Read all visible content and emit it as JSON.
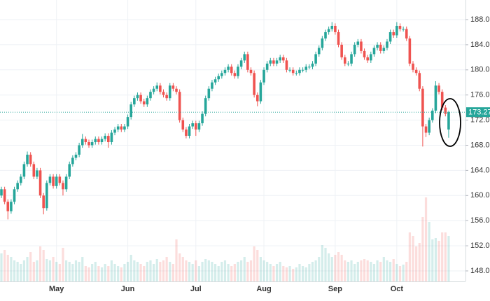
{
  "chart_data": {
    "type": "candlestick",
    "up_color": "#26a69a",
    "down_color": "#ef5350",
    "grid": true,
    "ylim": [
      146.33,
      191.12
    ],
    "yticks": [
      {
        "value": 148,
        "label": "148.00"
      },
      {
        "value": 152,
        "label": "152.00"
      },
      {
        "value": 156,
        "label": "156.00"
      },
      {
        "value": 160,
        "label": "160.00"
      },
      {
        "value": 164,
        "label": "164.00"
      },
      {
        "value": 168,
        "label": "168.00"
      },
      {
        "value": 172,
        "label": "172.00"
      },
      {
        "value": 176,
        "label": "176.00"
      },
      {
        "value": 180,
        "label": "180.00"
      },
      {
        "value": 184,
        "label": "184.00"
      },
      {
        "value": 188,
        "label": "188.00"
      }
    ],
    "categories": [
      null,
      null,
      null,
      null,
      null,
      null,
      null,
      null,
      null,
      null,
      null,
      null,
      null,
      null,
      null,
      null,
      null,
      "May",
      null,
      null,
      null,
      null,
      null,
      null,
      null,
      null,
      null,
      null,
      null,
      null,
      null,
      null,
      null,
      null,
      null,
      null,
      null,
      null,
      null,
      "Jun",
      null,
      null,
      null,
      null,
      null,
      null,
      null,
      null,
      null,
      null,
      null,
      null,
      null,
      null,
      null,
      null,
      null,
      null,
      null,
      null,
      "Jul",
      null,
      null,
      null,
      null,
      null,
      null,
      null,
      null,
      null,
      null,
      null,
      null,
      null,
      null,
      null,
      null,
      null,
      null,
      null,
      null,
      "Aug",
      null,
      null,
      null,
      null,
      null,
      null,
      null,
      null,
      null,
      null,
      null,
      null,
      null,
      null,
      null,
      null,
      null,
      null,
      null,
      null,
      null,
      "Sep",
      null,
      null,
      null,
      null,
      null,
      null,
      null,
      null,
      null,
      null,
      null,
      null,
      null,
      null,
      null,
      null,
      null,
      null,
      "Oct",
      null,
      null,
      null,
      null,
      null,
      null,
      null,
      null,
      null,
      null,
      null,
      null,
      null,
      null,
      null,
      null
    ],
    "ohlc": [
      [
        160,
        161.4,
        159.6,
        161
      ],
      [
        161,
        161.4,
        158.6,
        159
      ],
      [
        159,
        159.4,
        156.2,
        157.5
      ],
      [
        157.5,
        159.4,
        157.1,
        159
      ],
      [
        159,
        161.4,
        158.6,
        161
      ],
      [
        161,
        162.4,
        160.6,
        162
      ],
      [
        162,
        163.4,
        161.6,
        163
      ],
      [
        163,
        165.4,
        162.6,
        165
      ],
      [
        165,
        167,
        164.6,
        166.5
      ],
      [
        166.5,
        166.9,
        164.6,
        165
      ],
      [
        165,
        165.4,
        162.6,
        163
      ],
      [
        163,
        164.4,
        162.6,
        164
      ],
      [
        164,
        164.4,
        159.6,
        160
      ],
      [
        160,
        160.4,
        157,
        158
      ],
      [
        158,
        162.4,
        157.6,
        162
      ],
      [
        162,
        163.4,
        161.6,
        163
      ],
      [
        163,
        163.4,
        161.1,
        161.5
      ],
      [
        161.5,
        163.4,
        161.1,
        163
      ],
      [
        163,
        163.4,
        161.6,
        162
      ],
      [
        162,
        162.4,
        160,
        161
      ],
      [
        161,
        163.4,
        160.6,
        163
      ],
      [
        163,
        165.4,
        162.6,
        165
      ],
      [
        165,
        166.4,
        164.6,
        166
      ],
      [
        166,
        166.9,
        165.6,
        166.5
      ],
      [
        166.5,
        168.4,
        166.1,
        168
      ],
      [
        168,
        169.8,
        167.6,
        169
      ],
      [
        169,
        169.4,
        168.1,
        168.5
      ],
      [
        168.5,
        168.9,
        167.6,
        168
      ],
      [
        168,
        168.9,
        167.6,
        168.5
      ],
      [
        168.5,
        169.4,
        168.1,
        169
      ],
      [
        169,
        169.4,
        168.1,
        168.5
      ],
      [
        168.5,
        169.4,
        168.1,
        169
      ],
      [
        169,
        169.9,
        168.6,
        169.5
      ],
      [
        169.5,
        169.9,
        167.6,
        168.5
      ],
      [
        168.5,
        170.4,
        168.1,
        170
      ],
      [
        170,
        170.9,
        169.6,
        170.5
      ],
      [
        170.5,
        171.4,
        170.1,
        171
      ],
      [
        171,
        171.4,
        170.1,
        170.5
      ],
      [
        170.5,
        171.4,
        170.1,
        171
      ],
      [
        171,
        172.9,
        170.6,
        172.5
      ],
      [
        172.5,
        174.9,
        172.1,
        174.5
      ],
      [
        174.5,
        175.9,
        174.1,
        175.5
      ],
      [
        175.5,
        176.4,
        175.1,
        176
      ],
      [
        176,
        176.4,
        174.6,
        175
      ],
      [
        175,
        175.4,
        174.1,
        174.5
      ],
      [
        174.5,
        175.9,
        174.1,
        175.5
      ],
      [
        175.5,
        176.9,
        175.1,
        176.5
      ],
      [
        176.5,
        177.4,
        176.1,
        177
      ],
      [
        177,
        178,
        176.6,
        177.5
      ],
      [
        177.5,
        177.9,
        176.1,
        176.5
      ],
      [
        176.5,
        176.9,
        175.6,
        176
      ],
      [
        176,
        176.4,
        175.1,
        175.5
      ],
      [
        175.5,
        177.9,
        175.1,
        177.5
      ],
      [
        177.5,
        177.9,
        176.6,
        177
      ],
      [
        177,
        177.4,
        176.1,
        176.5
      ],
      [
        176.5,
        176.9,
        171.6,
        172
      ],
      [
        172,
        172.4,
        170.1,
        170.5
      ],
      [
        170.5,
        170.9,
        169.1,
        169.5
      ],
      [
        169.5,
        171.4,
        169.1,
        171
      ],
      [
        171,
        171.9,
        170.6,
        171.5
      ],
      [
        171.5,
        171.9,
        169.5,
        170.5
      ],
      [
        170.5,
        171.9,
        170.1,
        171.5
      ],
      [
        171.5,
        173.4,
        171.1,
        173
      ],
      [
        173,
        175.9,
        172.6,
        175.5
      ],
      [
        175.5,
        177.4,
        175.1,
        177
      ],
      [
        177,
        178.4,
        176.6,
        178
      ],
      [
        178,
        178.9,
        177.6,
        178.5
      ],
      [
        178.5,
        179.4,
        178.1,
        179
      ],
      [
        179,
        179.9,
        178.6,
        179.5
      ],
      [
        179.5,
        180.4,
        179.1,
        180
      ],
      [
        180,
        180.9,
        179.6,
        180.5
      ],
      [
        180.5,
        180.9,
        179.1,
        179.5
      ],
      [
        179.5,
        179.9,
        178.6,
        179
      ],
      [
        179,
        180.9,
        178.6,
        180.5
      ],
      [
        180.5,
        181.9,
        180.1,
        181.5
      ],
      [
        181.5,
        182.9,
        181.1,
        182.5
      ],
      [
        182.5,
        182.9,
        179.6,
        180
      ],
      [
        180,
        180.4,
        179.1,
        179.5
      ],
      [
        179.5,
        179.9,
        175.6,
        176
      ],
      [
        176,
        176.4,
        174.2,
        175
      ],
      [
        175,
        178.4,
        174.6,
        178
      ],
      [
        178,
        180.4,
        177.6,
        180
      ],
      [
        180,
        181.4,
        179.6,
        181
      ],
      [
        181,
        181.9,
        180.6,
        181.5
      ],
      [
        181.5,
        181.9,
        180.6,
        181
      ],
      [
        181,
        181.9,
        180.6,
        181.5
      ],
      [
        181.5,
        182.4,
        181.1,
        182
      ],
      [
        182,
        182.4,
        181.1,
        181.5
      ],
      [
        181.5,
        181.9,
        179.6,
        180
      ],
      [
        180,
        180.4,
        179.6,
        180
      ],
      [
        180,
        180.4,
        179.1,
        179.5
      ],
      [
        179.5,
        179.9,
        179.1,
        179.5
      ],
      [
        179.5,
        180.4,
        179.1,
        180
      ],
      [
        180,
        180.4,
        179.6,
        180
      ],
      [
        180,
        180.9,
        179.6,
        180.5
      ],
      [
        180.5,
        180.9,
        180.1,
        180.5
      ],
      [
        180.5,
        181.4,
        180.1,
        181
      ],
      [
        181,
        182.9,
        180.6,
        182.5
      ],
      [
        182.5,
        183.9,
        182.1,
        183.5
      ],
      [
        183.5,
        185.4,
        183.1,
        185
      ],
      [
        185,
        186.4,
        184.6,
        186
      ],
      [
        186,
        186.9,
        185.6,
        186.5
      ],
      [
        186.5,
        187.6,
        186.1,
        187
      ],
      [
        187,
        187.4,
        185.6,
        186
      ],
      [
        186,
        186.4,
        183.6,
        184
      ],
      [
        184,
        184.4,
        181.6,
        182
      ],
      [
        182,
        182.4,
        180.6,
        181
      ],
      [
        181,
        181.4,
        180.6,
        181
      ],
      [
        181,
        182.9,
        180.6,
        182.5
      ],
      [
        182.5,
        184.4,
        182.1,
        184
      ],
      [
        184,
        184.9,
        183.6,
        184.5
      ],
      [
        184.5,
        184.9,
        182.6,
        183
      ],
      [
        183,
        183.4,
        181.6,
        182
      ],
      [
        182,
        182.4,
        181.1,
        181.5
      ],
      [
        181.5,
        182.9,
        181.1,
        182.5
      ],
      [
        182.5,
        183.9,
        182.1,
        183.5
      ],
      [
        183.5,
        184.4,
        183.1,
        184
      ],
      [
        184,
        184.4,
        182.6,
        183
      ],
      [
        183,
        183.9,
        182.6,
        183.5
      ],
      [
        183.5,
        184.9,
        183.1,
        184.5
      ],
      [
        184.5,
        186.4,
        184.1,
        186
      ],
      [
        186,
        186.4,
        185.1,
        185.5
      ],
      [
        185.5,
        187.6,
        185.1,
        187
      ],
      [
        187,
        187.4,
        186.1,
        186.5
      ],
      [
        186.5,
        186.9,
        186.1,
        186.5
      ],
      [
        186.5,
        186.9,
        184.6,
        185
      ],
      [
        185,
        185.4,
        180.6,
        181
      ],
      [
        181,
        181.4,
        179.6,
        180
      ],
      [
        180,
        180.4,
        179.1,
        179.5
      ],
      [
        179.5,
        179.9,
        176.6,
        177
      ],
      [
        177,
        177.4,
        167.8,
        171
      ],
      [
        171,
        171.4,
        169.3,
        170
      ],
      [
        170,
        172.4,
        169.6,
        172
      ],
      [
        172,
        173.9,
        171.6,
        173.5
      ],
      [
        173.5,
        178.2,
        173.1,
        177.5
      ],
      [
        177.5,
        177.9,
        176.1,
        176.5
      ],
      [
        176.5,
        176.9,
        173.6,
        174
      ],
      [
        174,
        174.4,
        172.6,
        173
      ],
      [
        170.5,
        173.5,
        169.2,
        173.27
      ]
    ],
    "volume_lim": [
      0,
      130
    ],
    "volume": [
      40,
      45,
      38,
      35,
      30,
      28,
      25,
      30,
      35,
      42,
      28,
      30,
      50,
      45,
      32,
      30,
      35,
      28,
      25,
      48,
      30,
      28,
      25,
      30,
      28,
      35,
      22,
      20,
      25,
      28,
      22,
      20,
      25,
      22,
      30,
      25,
      22,
      20,
      25,
      28,
      38,
      30,
      28,
      25,
      22,
      28,
      30,
      25,
      32,
      28,
      30,
      35,
      28,
      25,
      60,
      40,
      35,
      30,
      28,
      25,
      30,
      22,
      28,
      32,
      30,
      28,
      25,
      22,
      28,
      30,
      25,
      22,
      25,
      28,
      30,
      35,
      28,
      30,
      50,
      45,
      35,
      30,
      28,
      25,
      22,
      25,
      28,
      22,
      20,
      22,
      18,
      20,
      25,
      22,
      20,
      25,
      28,
      30,
      35,
      52,
      48,
      40,
      35,
      38,
      42,
      38,
      30,
      28,
      30,
      25,
      28,
      30,
      32,
      30,
      28,
      25,
      30,
      28,
      35,
      30,
      28,
      32,
      25,
      22,
      24,
      28,
      70,
      65,
      50,
      55,
      92,
      120,
      85,
      60,
      62,
      58,
      70,
      70,
      65
    ]
  }
}
